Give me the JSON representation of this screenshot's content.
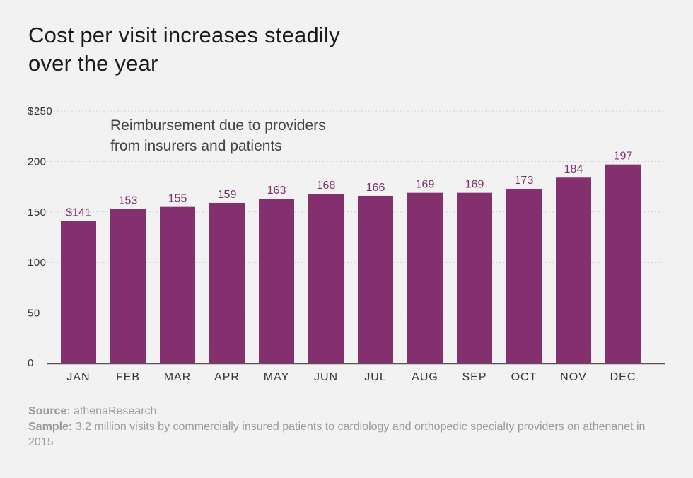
{
  "title_lines": [
    "Cost per visit increases steadily",
    "over the year"
  ],
  "chart_data": {
    "type": "bar",
    "title": "Cost per visit increases steadily over the year",
    "annotation_lines": [
      "Reimbursement due to providers",
      "from insurers and patients"
    ],
    "categories": [
      "JAN",
      "FEB",
      "MAR",
      "APR",
      "MAY",
      "JUN",
      "JUL",
      "AUG",
      "SEP",
      "OCT",
      "NOV",
      "DEC"
    ],
    "values": [
      141,
      153,
      155,
      159,
      163,
      168,
      166,
      169,
      169,
      173,
      184,
      197
    ],
    "value_labels": [
      "$141",
      "153",
      "155",
      "159",
      "163",
      "168",
      "166",
      "169",
      "169",
      "173",
      "184",
      "197"
    ],
    "yticks": [
      0,
      50,
      100,
      150,
      200,
      250
    ],
    "ytick_labels": [
      "0",
      "50",
      "100",
      "150",
      "200",
      "$250"
    ],
    "ylim": [
      0,
      250
    ],
    "grid": true,
    "bar_color": "#84306f",
    "label_color": "#7b2f68"
  },
  "footer": {
    "source_label": "Source:",
    "source_text": " athenaResearch",
    "sample_label": "Sample:",
    "sample_text": " 3.2 million visits by commercially insured patients to cardiology and orthopedic specialty providers on athenanet in 2015"
  }
}
